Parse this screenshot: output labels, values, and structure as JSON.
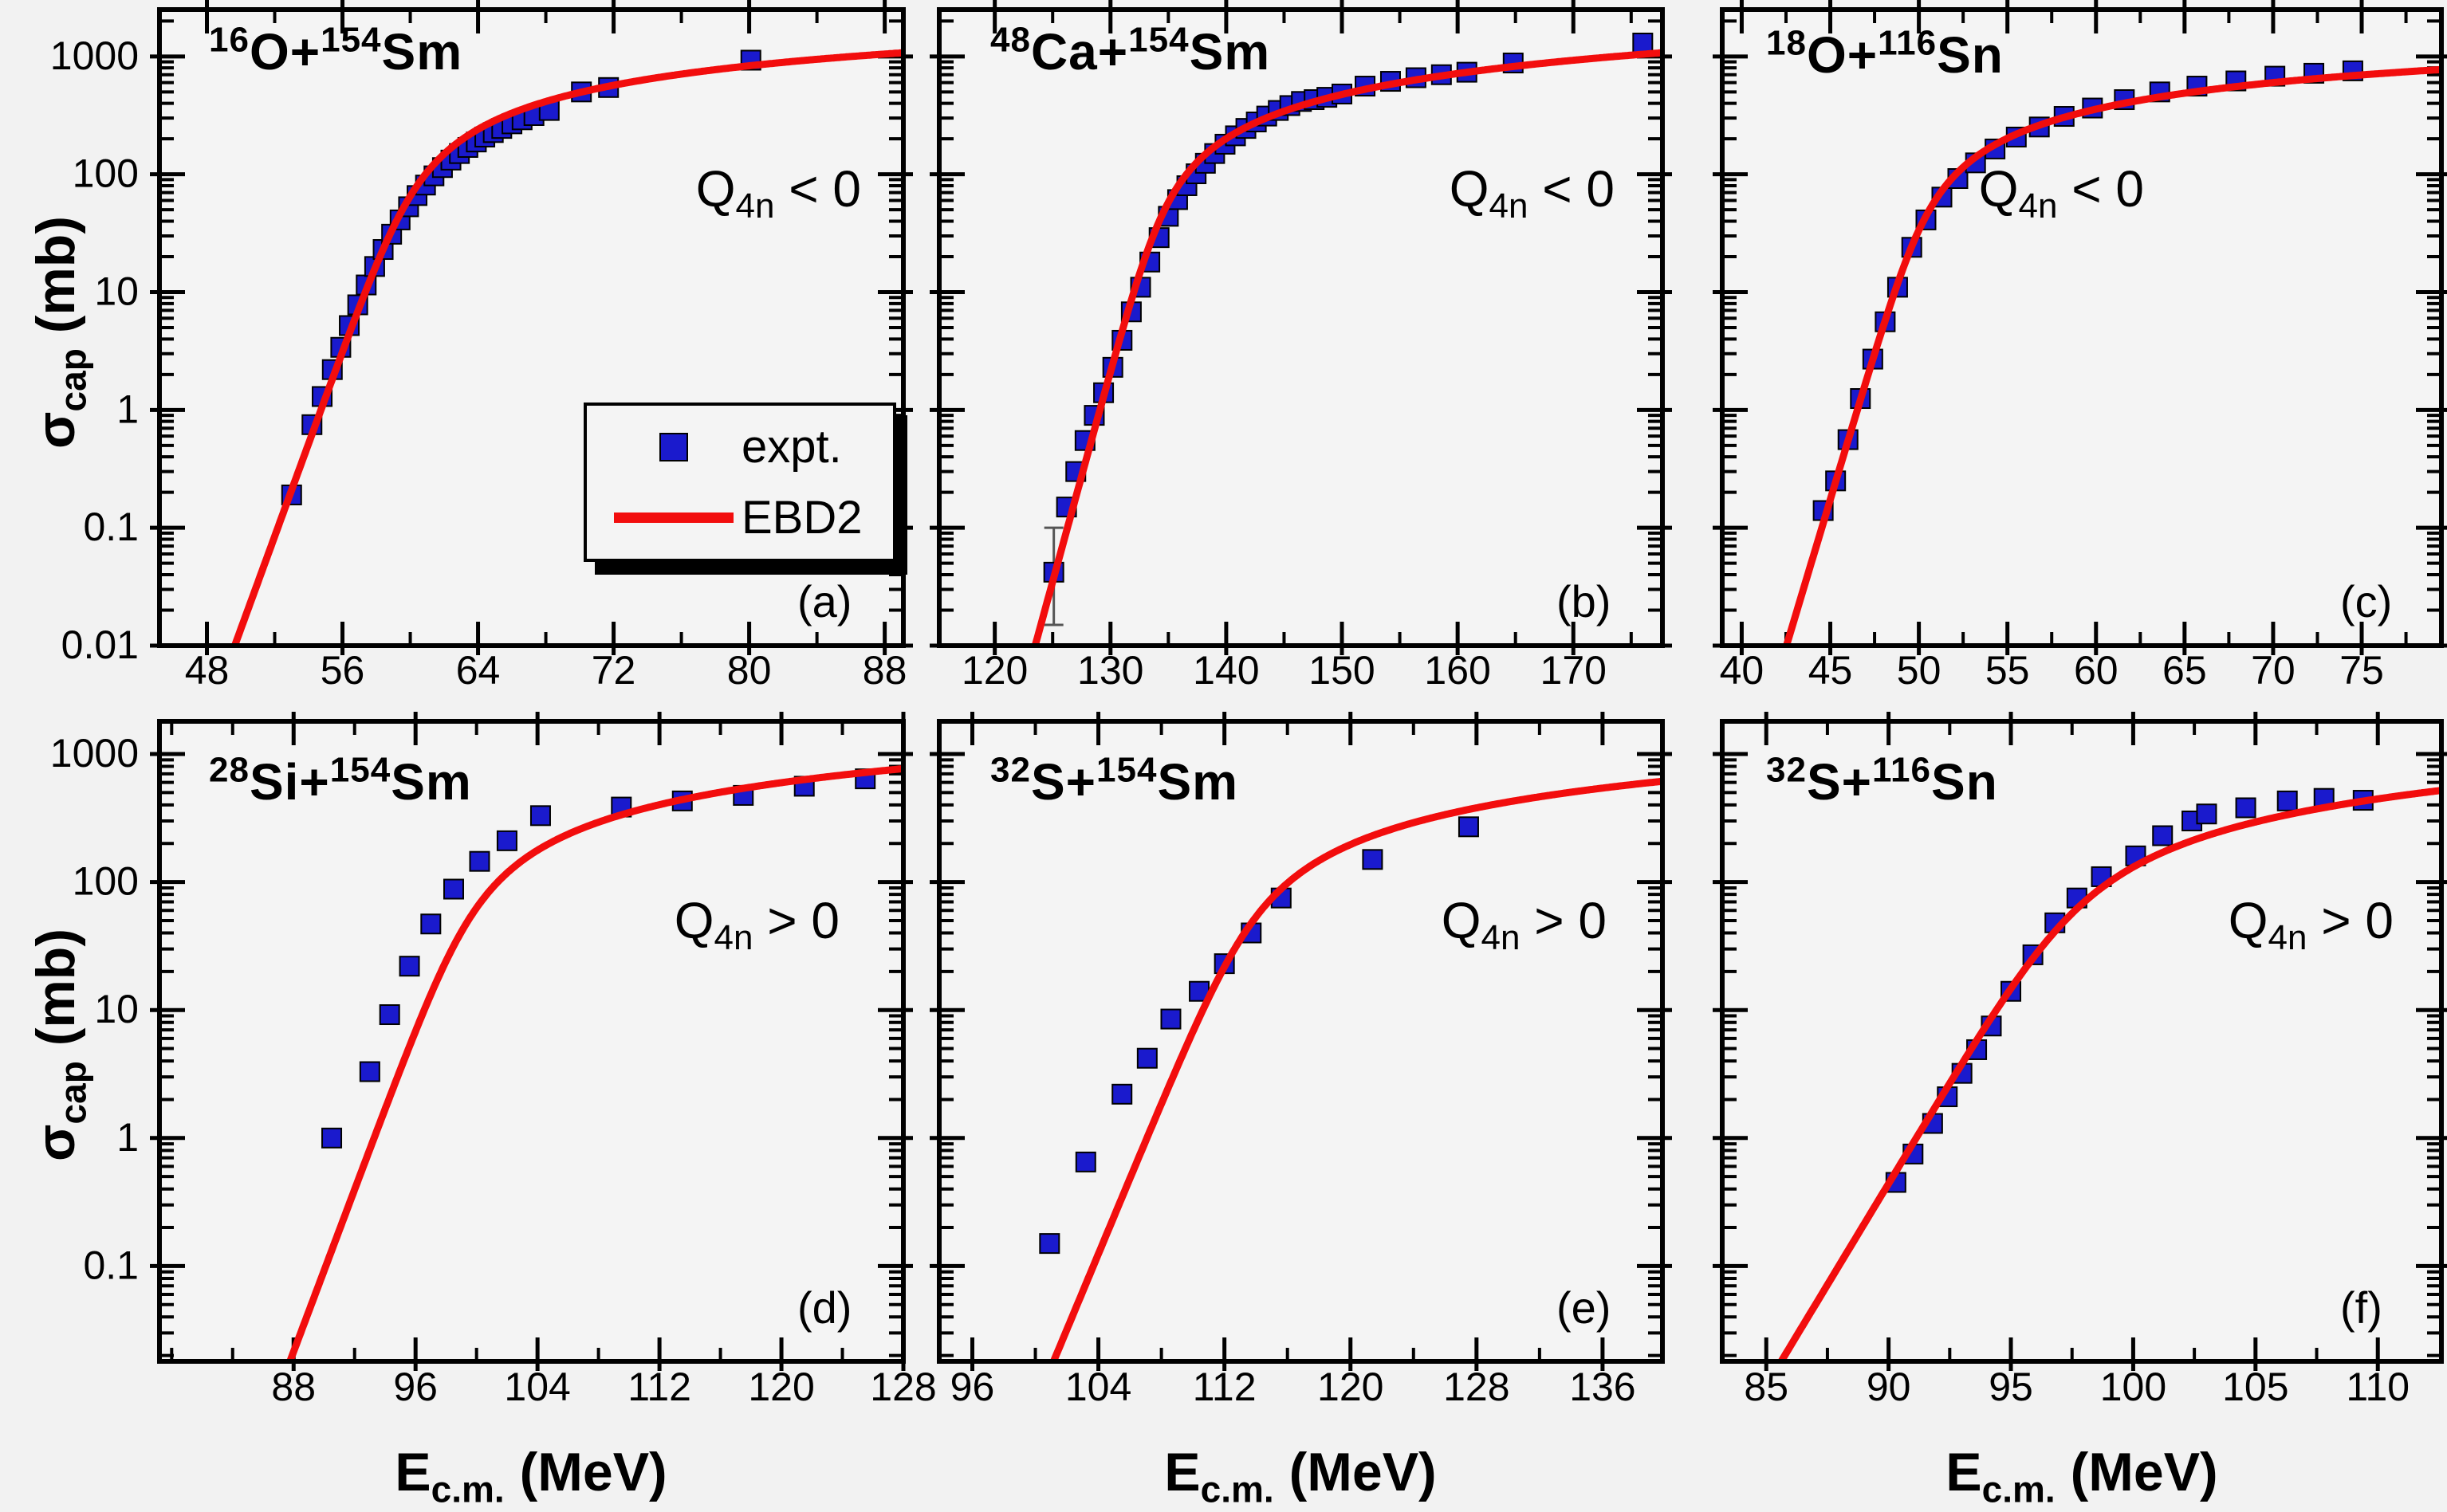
{
  "figure": {
    "background": "#f2f2f2",
    "colors": {
      "data_marker": "#1a1acd",
      "curve": "#f20d0d",
      "axis": "#000000",
      "panel_bg": "#f4f4f4"
    },
    "legend": {
      "expt_label": "expt.",
      "model_label": "EBD2"
    },
    "ylabel": {
      "base": "σ",
      "sub": "cap",
      "unit": " (mb)"
    },
    "xlabel": {
      "base": "E",
      "sub": "c.m.",
      "unit": " (MeV)"
    },
    "rows": [
      {
        "ymin": 0.01,
        "ymax": 2500,
        "yticks": [
          "0.01",
          "0.1",
          "1",
          "10",
          "100",
          "1000"
        ]
      },
      {
        "ymin": 0.018,
        "ymax": 1800,
        "yticks": [
          "0.1",
          "1",
          "10",
          "100",
          "1000"
        ]
      }
    ]
  },
  "chart_data": [
    {
      "type": "scatter",
      "panel_label": "(a)",
      "row": 0,
      "col": 0,
      "title": {
        "sup1": "16",
        "base1": "O+",
        "sup2": "154",
        "base2": "Sm"
      },
      "q_label": {
        "base": "Q",
        "sub": "4n",
        "rel": " < 0"
      },
      "xlim": [
        45.2,
        89.1
      ],
      "xticks": [
        48,
        56,
        64,
        72,
        80,
        88
      ],
      "x_minor_step": 4,
      "ylog": true,
      "series": [
        {
          "name": "expt.",
          "kind": "scatter",
          "points": [
            [
              53.0,
              0.19
            ],
            [
              54.2,
              0.75
            ],
            [
              54.8,
              1.3
            ],
            [
              55.4,
              2.2
            ],
            [
              55.9,
              3.4
            ],
            [
              56.4,
              5.2
            ],
            [
              56.9,
              7.8
            ],
            [
              57.4,
              11.5
            ],
            [
              57.9,
              16.5
            ],
            [
              58.4,
              23
            ],
            [
              58.9,
              31
            ],
            [
              59.4,
              41
            ],
            [
              59.9,
              53
            ],
            [
              60.4,
              66
            ],
            [
              60.9,
              81
            ],
            [
              61.4,
              97
            ],
            [
              61.9,
              114
            ],
            [
              62.4,
              132
            ],
            [
              62.9,
              150
            ],
            [
              63.4,
              169
            ],
            [
              63.9,
              188
            ],
            [
              64.4,
              207
            ],
            [
              64.9,
              226
            ],
            [
              65.4,
              245
            ],
            [
              66.0,
              268
            ],
            [
              66.6,
              290
            ],
            [
              67.3,
              315
            ],
            [
              68.2,
              348
            ],
            [
              70.1,
              500
            ],
            [
              71.7,
              545
            ],
            [
              80.1,
              930
            ]
          ]
        },
        {
          "name": "EBD2",
          "kind": "line",
          "wong": {
            "S": 3460,
            "B": 59.2,
            "w": 1.08
          }
        }
      ]
    },
    {
      "type": "scatter",
      "panel_label": "(b)",
      "row": 0,
      "col": 1,
      "title": {
        "sup1": "48",
        "base1": "Ca+",
        "sup2": "154",
        "base2": "Sm"
      },
      "q_label": {
        "base": "Q",
        "sub": "4n",
        "rel": " < 0"
      },
      "xlim": [
        115.2,
        177.7
      ],
      "xticks": [
        120,
        130,
        140,
        150,
        160,
        170
      ],
      "x_minor_step": 5,
      "ylog": true,
      "error_bars": [
        {
          "x": 125.1,
          "lo": 0.015,
          "hi": 0.1
        }
      ],
      "series": [
        {
          "name": "expt.",
          "kind": "scatter",
          "points": [
            [
              125.1,
              0.042
            ],
            [
              126.2,
              0.15
            ],
            [
              127.0,
              0.3
            ],
            [
              127.8,
              0.55
            ],
            [
              128.6,
              0.9
            ],
            [
              129.4,
              1.4
            ],
            [
              130.2,
              2.3
            ],
            [
              131.0,
              3.9
            ],
            [
              131.8,
              6.8
            ],
            [
              132.6,
              11
            ],
            [
              133.4,
              18
            ],
            [
              134.2,
              29
            ],
            [
              135.0,
              44
            ],
            [
              135.8,
              61
            ],
            [
              136.6,
              80
            ],
            [
              137.4,
              101
            ],
            [
              138.2,
              124
            ],
            [
              139.0,
              150
            ],
            [
              139.9,
              180
            ],
            [
              140.8,
              212
            ],
            [
              141.7,
              245
            ],
            [
              142.6,
              278
            ],
            [
              143.5,
              312
            ],
            [
              144.5,
              348
            ],
            [
              145.5,
              383
            ],
            [
              146.5,
              415
            ],
            [
              147.6,
              430
            ],
            [
              148.7,
              450
            ],
            [
              150.0,
              480
            ],
            [
              152.0,
              560
            ],
            [
              154.2,
              615
            ],
            [
              156.4,
              660
            ],
            [
              158.6,
              700
            ],
            [
              160.8,
              735
            ],
            [
              164.8,
              880
            ],
            [
              176.0,
              1300
            ]
          ]
        },
        {
          "name": "EBD2",
          "kind": "line",
          "wong": {
            "S": 5190,
            "B": 133.5,
            "w": 1.2
          }
        }
      ]
    },
    {
      "type": "scatter",
      "panel_label": "(c)",
      "row": 0,
      "col": 2,
      "title": {
        "sup1": "18",
        "base1": "O+",
        "sup2": "116",
        "base2": "Sn"
      },
      "q_label": {
        "base": "Q",
        "sub": "4n",
        "rel": " < 0"
      },
      "xlim": [
        38.9,
        79.5
      ],
      "xticks": [
        40,
        45,
        50,
        55,
        60,
        65,
        70,
        75
      ],
      "x_minor_step": 2.5,
      "ylog": true,
      "series": [
        {
          "name": "expt.",
          "kind": "scatter",
          "points": [
            [
              44.6,
              0.14
            ],
            [
              45.3,
              0.25
            ],
            [
              46.0,
              0.56
            ],
            [
              46.7,
              1.25
            ],
            [
              47.4,
              2.7
            ],
            [
              48.1,
              5.6
            ],
            [
              48.8,
              11
            ],
            [
              49.6,
              24
            ],
            [
              50.4,
              41
            ],
            [
              51.3,
              64
            ],
            [
              52.2,
              92
            ],
            [
              53.2,
              125
            ],
            [
              54.3,
              164
            ],
            [
              55.5,
              207
            ],
            [
              56.8,
              252
            ],
            [
              58.2,
              310
            ],
            [
              59.8,
              365
            ],
            [
              61.6,
              430
            ],
            [
              63.6,
              500
            ],
            [
              65.7,
              560
            ],
            [
              67.9,
              620
            ],
            [
              70.1,
              680
            ],
            [
              72.3,
              720
            ],
            [
              74.5,
              755
            ]
          ]
        },
        {
          "name": "EBD2",
          "kind": "line",
          "wong": {
            "S": 1750,
            "B": 49.6,
            "w": 0.85
          }
        }
      ]
    },
    {
      "type": "scatter",
      "panel_label": "(d)",
      "row": 1,
      "col": 0,
      "title": {
        "sup1": "28",
        "base1": "Si+",
        "sup2": "154",
        "base2": "Sm"
      },
      "q_label": {
        "base": "Q",
        "sub": "4n",
        "rel": " > 0"
      },
      "xlim": [
        79.2,
        128
      ],
      "xticks": [
        88,
        96,
        104,
        112,
        120,
        128
      ],
      "x_minor_step": 4,
      "ylog": true,
      "series": [
        {
          "name": "expt.",
          "kind": "scatter",
          "points": [
            [
              90.5,
              1.0
            ],
            [
              93.0,
              3.3
            ],
            [
              94.3,
              9.2
            ],
            [
              95.6,
              22
            ],
            [
              97.0,
              47
            ],
            [
              98.5,
              88
            ],
            [
              100.2,
              145
            ],
            [
              102.0,
              210
            ],
            [
              104.2,
              330
            ],
            [
              109.5,
              385
            ],
            [
              113.5,
              430
            ],
            [
              117.5,
              475
            ],
            [
              121.5,
              560
            ],
            [
              125.5,
              640
            ]
          ]
        },
        {
          "name": "EBD2",
          "kind": "line",
          "wong": {
            "S": 4500,
            "B": 98.5,
            "w": 1.35
          }
        }
      ]
    },
    {
      "type": "scatter",
      "panel_label": "(e)",
      "row": 1,
      "col": 1,
      "title": {
        "sup1": "32",
        "base1": "S+",
        "sup2": "154",
        "base2": "Sm"
      },
      "q_label": {
        "base": "Q",
        "sub": "4n",
        "rel": " > 0"
      },
      "xlim": [
        93.9,
        139.8
      ],
      "xticks": [
        96,
        104,
        112,
        120,
        128,
        136
      ],
      "x_minor_step": 4,
      "ylog": true,
      "series": [
        {
          "name": "expt.",
          "kind": "scatter",
          "points": [
            [
              100.9,
              0.15
            ],
            [
              103.2,
              0.65
            ],
            [
              105.5,
              2.2
            ],
            [
              107.1,
              4.2
            ],
            [
              108.6,
              8.5
            ],
            [
              110.4,
              14
            ],
            [
              112.0,
              23
            ],
            [
              113.7,
              40
            ],
            [
              115.6,
              75
            ],
            [
              121.4,
              150
            ],
            [
              127.5,
              270
            ]
          ]
        },
        {
          "name": "EBD2",
          "kind": "line",
          "wong": {
            "S": 4546,
            "B": 112.5,
            "w": 1.45
          }
        }
      ]
    },
    {
      "type": "scatter",
      "panel_label": "(f)",
      "row": 1,
      "col": 2,
      "title": {
        "sup1": "32",
        "base1": "S+",
        "sup2": "116",
        "base2": "Sn"
      },
      "q_label": {
        "base": "Q",
        "sub": "4n",
        "rel": " > 0"
      },
      "xlim": [
        83.2,
        112.6
      ],
      "xticks": [
        85,
        90,
        95,
        100,
        105,
        110
      ],
      "x_minor_step": 2.5,
      "ylog": true,
      "series": [
        {
          "name": "expt.",
          "kind": "scatter",
          "points": [
            [
              90.3,
              0.45
            ],
            [
              91.0,
              0.75
            ],
            [
              91.8,
              1.3
            ],
            [
              92.4,
              2.1
            ],
            [
              93.0,
              3.2
            ],
            [
              93.6,
              4.9
            ],
            [
              94.2,
              7.5
            ],
            [
              95.0,
              14
            ],
            [
              95.9,
              27
            ],
            [
              96.8,
              48
            ],
            [
              97.7,
              75
            ],
            [
              98.7,
              110
            ],
            [
              100.1,
              160
            ],
            [
              101.2,
              230
            ],
            [
              102.4,
              300
            ],
            [
              103.0,
              340
            ],
            [
              104.6,
              380
            ],
            [
              106.3,
              430
            ],
            [
              107.8,
              450
            ],
            [
              109.4,
              435
            ]
          ]
        },
        {
          "name": "EBD2",
          "kind": "line",
          "wong": {
            "S": 4908,
            "B": 96.5,
            "w": 1.35
          }
        }
      ]
    }
  ]
}
